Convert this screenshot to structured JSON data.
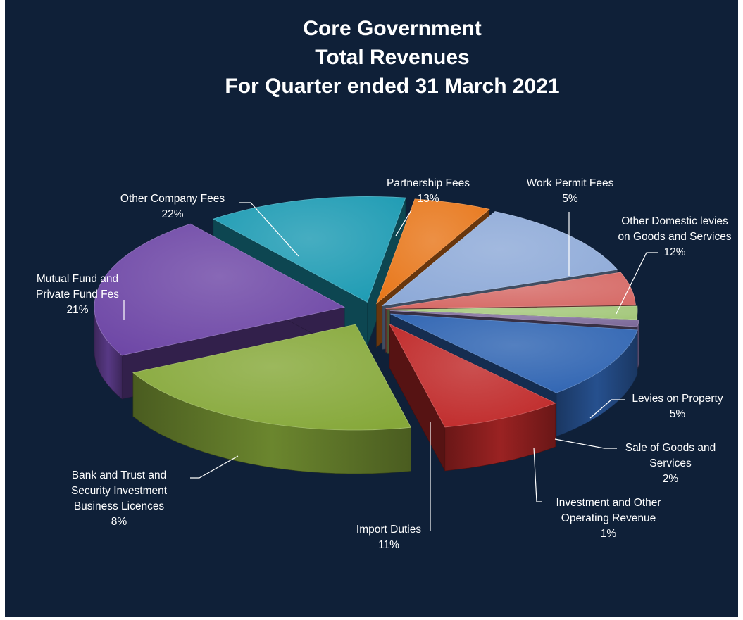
{
  "colors": {
    "background": "#0f2038",
    "text": "#ffffff"
  },
  "chart_data": {
    "type": "pie",
    "style": "3d-exploded",
    "title_lines": [
      "Core Government",
      "Total Revenues",
      "For Quarter ended 31 March 2021"
    ],
    "units": "percent",
    "slices": [
      {
        "name": "Partnership Fees",
        "label_lines": [
          "Partnership Fees"
        ],
        "value_text": "13%",
        "value": 13,
        "color": "#1d9bb3"
      },
      {
        "name": "Work Permit Fees",
        "label_lines": [
          "Work Permit Fees"
        ],
        "value_text": "5%",
        "value": 5,
        "color": "#e8781c"
      },
      {
        "name": "Other Domestic levies on Goods and Services",
        "label_lines": [
          "Other Domestic levies",
          "on Goods and Services"
        ],
        "value_text": "12%",
        "value": 12,
        "color": "#8eaad8"
      },
      {
        "name": "Levies on Property",
        "label_lines": [
          "Levies on Property"
        ],
        "value_text": "5%",
        "value": 5,
        "color": "#d66a66"
      },
      {
        "name": "Sale of Goods and Services",
        "label_lines": [
          "Sale of Goods and",
          "Services"
        ],
        "value_text": "2%",
        "value": 2,
        "color": "#a3c77a"
      },
      {
        "name": "Investment and Other Operating Revenue",
        "label_lines": [
          "Investment and Other",
          "Operating Revenue"
        ],
        "value_text": "1%",
        "value": 1,
        "color": "#7d6a9a"
      },
      {
        "name": "Import Duties",
        "label_lines": [
          "Import Duties"
        ],
        "value_text": "11%",
        "value": 11,
        "color": "#2f64b2"
      },
      {
        "name": "Bank and Trust and Security Investment Business Licences",
        "label_lines": [
          "Bank and Trust and",
          "Security Investment",
          "Business Licences"
        ],
        "value_text": "8%",
        "value": 8,
        "color": "#c02a2a"
      },
      {
        "name": "Mutual Fund and Private Fund Fes",
        "label_lines": [
          "Mutual Fund and",
          "Private Fund Fes"
        ],
        "value_text": "21%",
        "value": 21,
        "color": "#86a83a"
      },
      {
        "name": "Other Company Fees",
        "label_lines": [
          "Other Company Fees"
        ],
        "value_text": "22%",
        "value": 22,
        "color": "#6e47a6"
      }
    ]
  }
}
